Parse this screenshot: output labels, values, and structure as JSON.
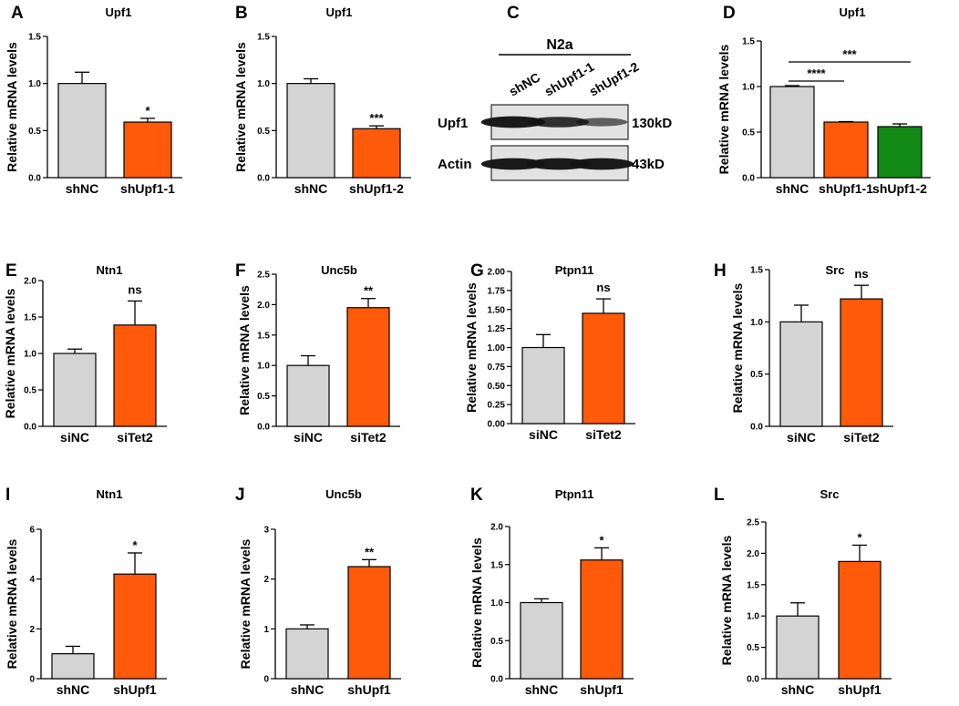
{
  "colors": {
    "gray": "#d4d4d4",
    "orange": "#ff5a0a",
    "green": "#138a17",
    "ink": "#000000",
    "blot_bg": "#e2e2e2",
    "band": "#141414"
  },
  "chart_data": [
    {
      "id": "A",
      "type": "bar",
      "title": "Upf1",
      "ylabel": "Relative mRNA levels",
      "ylim": [
        0,
        1.5
      ],
      "yticks": [
        "0.0",
        "0.5",
        "1.0",
        "1.5"
      ],
      "tick_values": [
        0,
        0.5,
        1.0,
        1.5
      ],
      "categories": [
        "shNC",
        "shUpf1-1"
      ],
      "values": [
        1.0,
        0.59
      ],
      "errors": [
        0.12,
        0.04
      ],
      "colors": [
        "gray",
        "orange"
      ],
      "significance": [
        {
          "label": "*",
          "bar": 1
        }
      ]
    },
    {
      "id": "B",
      "type": "bar",
      "title": "Upf1",
      "ylabel": "Relative mRNA levels",
      "ylim": [
        0,
        1.5
      ],
      "yticks": [
        "0.0",
        "0.5",
        "1.0",
        "1.5"
      ],
      "tick_values": [
        0,
        0.5,
        1.0,
        1.5
      ],
      "categories": [
        "shNC",
        "shUpf1-2"
      ],
      "values": [
        1.0,
        0.52
      ],
      "errors": [
        0.05,
        0.03
      ],
      "colors": [
        "gray",
        "orange"
      ],
      "significance": [
        {
          "label": "***",
          "bar": 1
        }
      ]
    },
    {
      "id": "D",
      "type": "bar",
      "title": "Upf1",
      "ylabel": "Relative mRNA levels",
      "ylim": [
        0,
        1.5
      ],
      "yticks": [
        "0.0",
        "0.5",
        "1.0",
        "1.5"
      ],
      "tick_values": [
        0,
        0.5,
        1.0,
        1.5
      ],
      "categories": [
        "shNC",
        "shUpf1-1",
        "shUpf1-2"
      ],
      "values": [
        1.0,
        0.61,
        0.56
      ],
      "errors": [
        0.01,
        0.005,
        0.03
      ],
      "colors": [
        "gray",
        "orange",
        "green"
      ],
      "brackets": [
        {
          "label": "****",
          "from": 0,
          "to": 1
        },
        {
          "label": "***",
          "from": 0,
          "to": 2
        }
      ]
    },
    {
      "id": "E",
      "type": "bar",
      "title": "Ntn1",
      "ylabel": "Relative mRNA levels",
      "ylim": [
        0,
        2.0
      ],
      "yticks": [
        "0.0",
        "0.5",
        "1.0",
        "1.5",
        "2.0"
      ],
      "tick_values": [
        0,
        0.5,
        1.0,
        1.5,
        2.0
      ],
      "categories": [
        "siNC",
        "siTet2"
      ],
      "values": [
        1.0,
        1.39
      ],
      "errors": [
        0.06,
        0.33
      ],
      "colors": [
        "gray",
        "orange"
      ],
      "significance": [
        {
          "label": "ns",
          "bar": 1
        }
      ]
    },
    {
      "id": "F",
      "type": "bar",
      "title": "Unc5b",
      "ylabel": "Relative mRNA levels",
      "ylim": [
        0,
        2.5
      ],
      "yticks": [
        "0.0",
        "0.5",
        "1.0",
        "1.5",
        "2.0",
        "2.5"
      ],
      "tick_values": [
        0,
        0.5,
        1.0,
        1.5,
        2.0,
        2.5
      ],
      "categories": [
        "siNC",
        "siTet2"
      ],
      "values": [
        1.0,
        1.95
      ],
      "errors": [
        0.16,
        0.15
      ],
      "colors": [
        "gray",
        "orange"
      ],
      "significance": [
        {
          "label": "**",
          "bar": 1
        }
      ]
    },
    {
      "id": "G",
      "type": "bar",
      "title": "Ptpn11",
      "ylabel": "Relative mRNA levels",
      "ylim": [
        0,
        2.0
      ],
      "yticks": [
        "0.00",
        "0.25",
        "0.50",
        "0.75",
        "1.00",
        "1.25",
        "1.50",
        "1.75",
        "2.00"
      ],
      "tick_values": [
        0,
        0.25,
        0.5,
        0.75,
        1.0,
        1.25,
        1.5,
        1.75,
        2.0
      ],
      "categories": [
        "siNC",
        "siTet2"
      ],
      "values": [
        1.0,
        1.45
      ],
      "errors": [
        0.17,
        0.19
      ],
      "colors": [
        "gray",
        "orange"
      ],
      "significance": [
        {
          "label": "ns",
          "bar": 1
        }
      ]
    },
    {
      "id": "H",
      "type": "bar",
      "title": "Src",
      "ylabel": "Relative mRNA levels",
      "ylim": [
        0,
        1.5
      ],
      "yticks": [
        "0.0",
        "0.5",
        "1.0",
        "1.5"
      ],
      "tick_values": [
        0,
        0.5,
        1.0,
        1.5
      ],
      "categories": [
        "siNC",
        "siTet2"
      ],
      "values": [
        1.0,
        1.22
      ],
      "errors": [
        0.16,
        0.13
      ],
      "colors": [
        "gray",
        "orange"
      ],
      "significance": [
        {
          "label": "ns",
          "bar": 1
        }
      ]
    },
    {
      "id": "I",
      "type": "bar",
      "title": "Ntn1",
      "ylabel": "Relative mRNA levels",
      "ylim": [
        0,
        6
      ],
      "yticks": [
        "0",
        "2",
        "4",
        "6"
      ],
      "tick_values": [
        0,
        2,
        4,
        6
      ],
      "categories": [
        "shNC",
        "shUpf1"
      ],
      "values": [
        1.0,
        4.2
      ],
      "errors": [
        0.3,
        0.85
      ],
      "colors": [
        "gray",
        "orange"
      ],
      "significance": [
        {
          "label": "*",
          "bar": 1
        }
      ]
    },
    {
      "id": "J",
      "type": "bar",
      "title": "Unc5b",
      "ylabel": "Relative mRNA levels",
      "ylim": [
        0,
        3
      ],
      "yticks": [
        "0",
        "1",
        "2",
        "3"
      ],
      "tick_values": [
        0,
        1,
        2,
        3
      ],
      "categories": [
        "shNC",
        "shUpf1"
      ],
      "values": [
        1.0,
        2.25
      ],
      "errors": [
        0.08,
        0.14
      ],
      "colors": [
        "gray",
        "orange"
      ],
      "significance": [
        {
          "label": "**",
          "bar": 1
        }
      ]
    },
    {
      "id": "K",
      "type": "bar",
      "title": "Ptpn11",
      "ylabel": "Relative mRNA levels",
      "ylim": [
        0,
        2.0
      ],
      "yticks": [
        "0.0",
        "0.5",
        "1.0",
        "1.5",
        "2.0"
      ],
      "tick_values": [
        0,
        0.5,
        1.0,
        1.5,
        2.0
      ],
      "categories": [
        "shNC",
        "shUpf1"
      ],
      "values": [
        1.0,
        1.56
      ],
      "errors": [
        0.05,
        0.16
      ],
      "colors": [
        "gray",
        "orange"
      ],
      "significance": [
        {
          "label": "*",
          "bar": 1
        }
      ]
    },
    {
      "id": "L",
      "type": "bar",
      "title": "Src",
      "ylabel": "Relative mRNA levels",
      "ylim": [
        0,
        2.5
      ],
      "yticks": [
        "0.0",
        "0.5",
        "1.0",
        "1.5",
        "2.0",
        "2.5"
      ],
      "tick_values": [
        0,
        0.5,
        1.0,
        1.5,
        2.0,
        2.5
      ],
      "categories": [
        "shNC",
        "shUpf1"
      ],
      "values": [
        1.0,
        1.87
      ],
      "errors": [
        0.21,
        0.26
      ],
      "colors": [
        "gray",
        "orange"
      ],
      "significance": [
        {
          "label": "*",
          "bar": 1
        }
      ]
    }
  ],
  "blot": {
    "id": "C",
    "cell_line": "N2a",
    "lanes": [
      "shNC",
      "shUpf1-1",
      "shUpf1-2"
    ],
    "rows": [
      {
        "label": "Upf1",
        "size": "130kD",
        "intensities": [
          0.95,
          0.8,
          0.45
        ]
      },
      {
        "label": "Actin",
        "size": "43kD",
        "intensities": [
          0.95,
          0.95,
          0.95
        ]
      }
    ]
  }
}
